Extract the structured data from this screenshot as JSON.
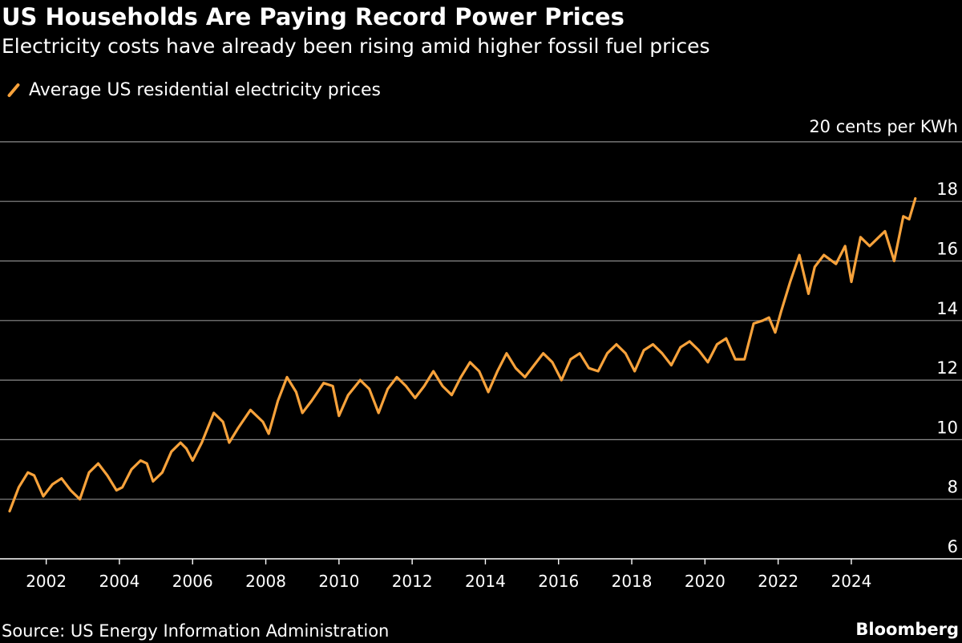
{
  "title": "US Households Are Paying Record Power Prices",
  "subtitle": "Electricity costs have already been rising amid higher fossil fuel prices",
  "legend": {
    "label": "Average US residential electricity prices",
    "color": "#F7A23B"
  },
  "footer": {
    "source": "Source: US Energy Information Administration",
    "brand": "Bloomberg"
  },
  "chart_data": {
    "type": "line",
    "title": "US Households Are Paying Record Power Prices",
    "subtitle": "Electricity costs have already been rising amid higher fossil fuel prices",
    "xlabel": "",
    "ylabel": "",
    "y_top_label": "20 cents per KWh",
    "ylim": [
      6,
      20
    ],
    "yticks": [
      6,
      8,
      10,
      12,
      14,
      16,
      18,
      20
    ],
    "ytick_labels": [
      "6",
      "8",
      "10",
      "12",
      "14",
      "16",
      "18"
    ],
    "xlim": [
      2001.0,
      2026.0
    ],
    "xticks": [
      2002,
      2004,
      2006,
      2008,
      2010,
      2012,
      2014,
      2016,
      2018,
      2020,
      2022,
      2024
    ],
    "xtick_labels": [
      "2002",
      "2004",
      "2006",
      "2008",
      "2010",
      "2012",
      "2014",
      "2016",
      "2018",
      "2020",
      "2022",
      "2024"
    ],
    "grid": "horizontal",
    "legend_position": "top-left",
    "line_color": "#F7A23B",
    "series": [
      {
        "name": "Average US residential electricity prices",
        "x": [
          2001.0,
          2001.25,
          2001.5,
          2001.67,
          2001.92,
          2002.17,
          2002.42,
          2002.67,
          2002.92,
          2003.17,
          2003.42,
          2003.67,
          2003.92,
          2004.08,
          2004.33,
          2004.58,
          2004.75,
          2004.92,
          2005.17,
          2005.42,
          2005.67,
          2005.83,
          2006.0,
          2006.25,
          2006.58,
          2006.83,
          2007.0,
          2007.25,
          2007.58,
          2007.92,
          2008.08,
          2008.33,
          2008.58,
          2008.83,
          2009.0,
          2009.25,
          2009.58,
          2009.83,
          2010.0,
          2010.25,
          2010.58,
          2010.83,
          2011.08,
          2011.33,
          2011.58,
          2011.83,
          2012.08,
          2012.33,
          2012.58,
          2012.83,
          2013.08,
          2013.33,
          2013.58,
          2013.83,
          2014.08,
          2014.33,
          2014.58,
          2014.83,
          2015.08,
          2015.33,
          2015.58,
          2015.83,
          2016.08,
          2016.33,
          2016.58,
          2016.83,
          2017.08,
          2017.33,
          2017.58,
          2017.83,
          2018.08,
          2018.33,
          2018.58,
          2018.83,
          2019.08,
          2019.33,
          2019.58,
          2019.83,
          2020.08,
          2020.33,
          2020.58,
          2020.83,
          2021.08,
          2021.33,
          2021.58,
          2021.75,
          2021.92,
          2022.08,
          2022.33,
          2022.58,
          2022.83,
          2023.0,
          2023.25,
          2023.58,
          2023.83,
          2024.0,
          2024.25,
          2024.5,
          2024.75,
          2024.92,
          2025.17,
          2025.42,
          2025.58,
          2025.75
        ],
        "values": [
          7.6,
          8.4,
          8.9,
          8.8,
          8.1,
          8.5,
          8.7,
          8.3,
          8.0,
          8.9,
          9.2,
          8.8,
          8.3,
          8.4,
          9.0,
          9.3,
          9.2,
          8.6,
          8.9,
          9.6,
          9.9,
          9.7,
          9.3,
          9.9,
          10.9,
          10.6,
          9.9,
          10.4,
          11.0,
          10.6,
          10.2,
          11.3,
          12.1,
          11.6,
          10.9,
          11.3,
          11.9,
          11.8,
          10.8,
          11.5,
          12.0,
          11.7,
          10.9,
          11.7,
          12.1,
          11.8,
          11.4,
          11.8,
          12.3,
          11.8,
          11.5,
          12.1,
          12.6,
          12.3,
          11.6,
          12.3,
          12.9,
          12.4,
          12.1,
          12.5,
          12.9,
          12.6,
          12.0,
          12.7,
          12.9,
          12.4,
          12.3,
          12.9,
          13.2,
          12.9,
          12.3,
          13.0,
          13.2,
          12.9,
          12.5,
          13.1,
          13.3,
          13.0,
          12.6,
          13.2,
          13.4,
          12.7,
          12.7,
          13.9,
          14.0,
          14.1,
          13.6,
          14.3,
          15.3,
          16.2,
          14.9,
          15.8,
          16.2,
          15.9,
          16.5,
          15.3,
          16.8,
          16.5,
          16.8,
          17.0,
          16.0,
          17.5,
          17.4,
          18.1
        ]
      }
    ]
  }
}
